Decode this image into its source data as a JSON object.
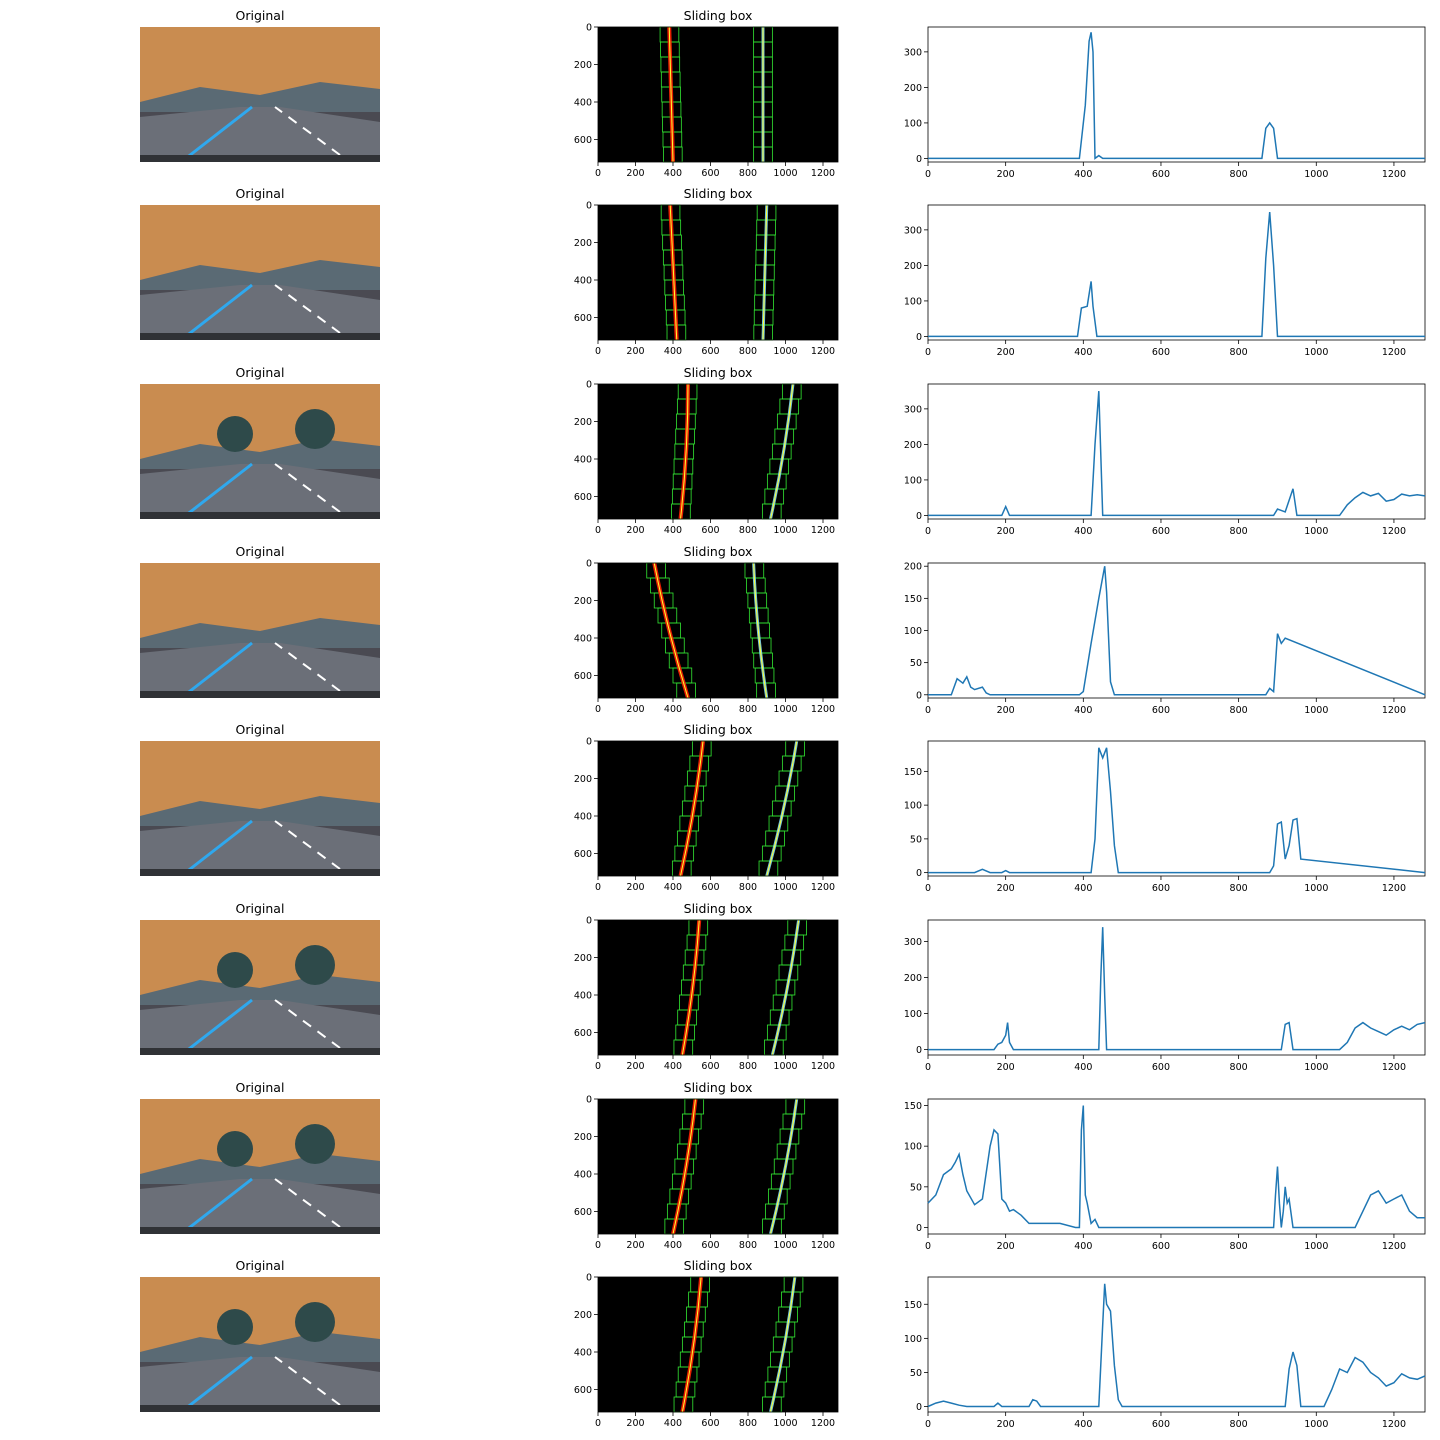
{
  "figure": {
    "original_title": "Original",
    "sliding_title": "Sliding box"
  },
  "colors": {
    "sky": "#c98c50",
    "road": "#4a4a52",
    "lane_left": "#2fa8ee",
    "lane_marks": "#ffffff",
    "binary_bg": "#000000",
    "left_pixels": "#ff2000",
    "right_pixels": "#7fd9f0",
    "windows": "#33e833",
    "fit_line": "#ffff33",
    "hist_line": "#1f77b4"
  },
  "chart_data": [
    {
      "type": "image",
      "subplot": "sliding_box",
      "title": "Sliding box",
      "xticks": [
        0,
        200,
        400,
        600,
        800,
        1000,
        1200
      ],
      "yticks": [
        0,
        200,
        400,
        600
      ],
      "xlim": [
        0,
        1280
      ],
      "ylim": [
        720,
        0
      ]
    },
    {
      "type": "line",
      "subplot": "histogram",
      "xticks": [
        0,
        200,
        400,
        600,
        800,
        1000,
        1200
      ],
      "xlim": [
        0,
        1280
      ],
      "rows": [
        {
          "yticks": [
            0,
            100,
            200,
            300
          ],
          "ylim": [
            -10,
            370
          ],
          "x": [
            0,
            390,
            405,
            415,
            420,
            425,
            430,
            440,
            450,
            860,
            870,
            880,
            890,
            900,
            1280
          ],
          "y": [
            0,
            0,
            150,
            330,
            355,
            300,
            0,
            8,
            0,
            0,
            85,
            100,
            85,
            0,
            0
          ]
        },
        {
          "yticks": [
            0,
            100,
            200,
            300
          ],
          "ylim": [
            -10,
            370
          ],
          "x": [
            0,
            385,
            395,
            410,
            420,
            425,
            435,
            860,
            870,
            880,
            890,
            900,
            1280
          ],
          "y": [
            0,
            0,
            80,
            85,
            155,
            85,
            0,
            0,
            220,
            350,
            200,
            0,
            0
          ],
          "note_points": []
        },
        {
          "yticks": [
            0,
            100,
            200,
            300
          ],
          "ylim": [
            -10,
            370
          ],
          "x": [
            0,
            190,
            200,
            210,
            420,
            430,
            440,
            450,
            890,
            900,
            920,
            940,
            950,
            1060,
            1080,
            1100,
            1120,
            1140,
            1160,
            1180,
            1200,
            1220,
            1240,
            1260,
            1280
          ],
          "y": [
            0,
            0,
            25,
            0,
            0,
            200,
            350,
            0,
            0,
            18,
            10,
            75,
            0,
            0,
            30,
            50,
            65,
            55,
            62,
            40,
            45,
            60,
            55,
            58,
            55
          ]
        },
        {
          "yticks": [
            0,
            50,
            100,
            150,
            200
          ],
          "ylim": [
            -5,
            205
          ],
          "x": [
            0,
            60,
            75,
            90,
            100,
            110,
            120,
            140,
            150,
            160,
            390,
            400,
            420,
            440,
            455,
            460,
            470,
            480,
            870,
            880,
            890,
            900,
            910,
            920,
            1280
          ],
          "y": [
            0,
            0,
            25,
            18,
            28,
            12,
            8,
            12,
            3,
            0,
            0,
            5,
            80,
            150,
            200,
            160,
            20,
            0,
            0,
            10,
            5,
            95,
            80,
            88,
            0
          ]
        },
        {
          "yticks": [
            0,
            50,
            100,
            150
          ],
          "ylim": [
            -5,
            195
          ],
          "x": [
            0,
            120,
            140,
            160,
            190,
            200,
            210,
            420,
            430,
            440,
            450,
            460,
            470,
            480,
            490,
            880,
            890,
            900,
            910,
            920,
            930,
            940,
            950,
            960,
            1280
          ],
          "y": [
            0,
            0,
            5,
            0,
            0,
            3,
            0,
            0,
            50,
            185,
            170,
            185,
            120,
            40,
            0,
            0,
            10,
            72,
            75,
            20,
            40,
            78,
            80,
            20,
            0
          ]
        },
        {
          "yticks": [
            0,
            100,
            200,
            300
          ],
          "ylim": [
            -15,
            360
          ],
          "x": [
            0,
            170,
            180,
            190,
            200,
            205,
            210,
            220,
            440,
            445,
            450,
            455,
            460,
            910,
            920,
            930,
            940,
            1060,
            1080,
            1100,
            1120,
            1140,
            1160,
            1180,
            1200,
            1220,
            1240,
            1260,
            1280
          ],
          "y": [
            0,
            0,
            15,
            20,
            40,
            75,
            20,
            0,
            0,
            200,
            340,
            150,
            0,
            0,
            70,
            75,
            0,
            0,
            20,
            60,
            75,
            60,
            50,
            40,
            55,
            65,
            55,
            70,
            75
          ]
        },
        {
          "yticks": [
            0,
            50,
            100,
            150
          ],
          "ylim": [
            -8,
            158
          ],
          "x": [
            0,
            20,
            40,
            60,
            70,
            80,
            90,
            100,
            120,
            140,
            160,
            170,
            180,
            190,
            200,
            210,
            220,
            240,
            260,
            300,
            340,
            380,
            390,
            395,
            400,
            405,
            410,
            420,
            430,
            440,
            450,
            560,
            800,
            890,
            895,
            900,
            905,
            910,
            915,
            920,
            925,
            930,
            940,
            1100,
            1120,
            1140,
            1160,
            1180,
            1200,
            1220,
            1240,
            1260,
            1280
          ],
          "y": [
            30,
            40,
            65,
            72,
            80,
            90,
            65,
            45,
            28,
            35,
            100,
            120,
            115,
            35,
            30,
            20,
            22,
            15,
            5,
            5,
            5,
            0,
            0,
            120,
            150,
            40,
            30,
            5,
            10,
            0,
            0,
            0,
            0,
            0,
            40,
            75,
            30,
            0,
            20,
            50,
            30,
            35,
            0,
            0,
            20,
            40,
            45,
            30,
            35,
            40,
            20,
            12,
            12
          ]
        },
        {
          "yticks": [
            0,
            50,
            100,
            150
          ],
          "ylim": [
            -8,
            190
          ],
          "x": [
            0,
            20,
            40,
            60,
            80,
            100,
            170,
            180,
            190,
            260,
            270,
            280,
            290,
            440,
            450,
            455,
            460,
            470,
            480,
            490,
            500,
            510,
            920,
            930,
            940,
            950,
            960,
            1020,
            1040,
            1060,
            1080,
            1100,
            1120,
            1140,
            1160,
            1180,
            1200,
            1220,
            1240,
            1260,
            1280
          ],
          "y": [
            0,
            5,
            8,
            5,
            2,
            0,
            0,
            5,
            0,
            0,
            10,
            8,
            0,
            0,
            120,
            180,
            150,
            140,
            60,
            10,
            0,
            0,
            0,
            55,
            80,
            60,
            0,
            0,
            25,
            55,
            50,
            72,
            65,
            50,
            42,
            30,
            35,
            48,
            42,
            40,
            45
          ]
        }
      ]
    }
  ]
}
